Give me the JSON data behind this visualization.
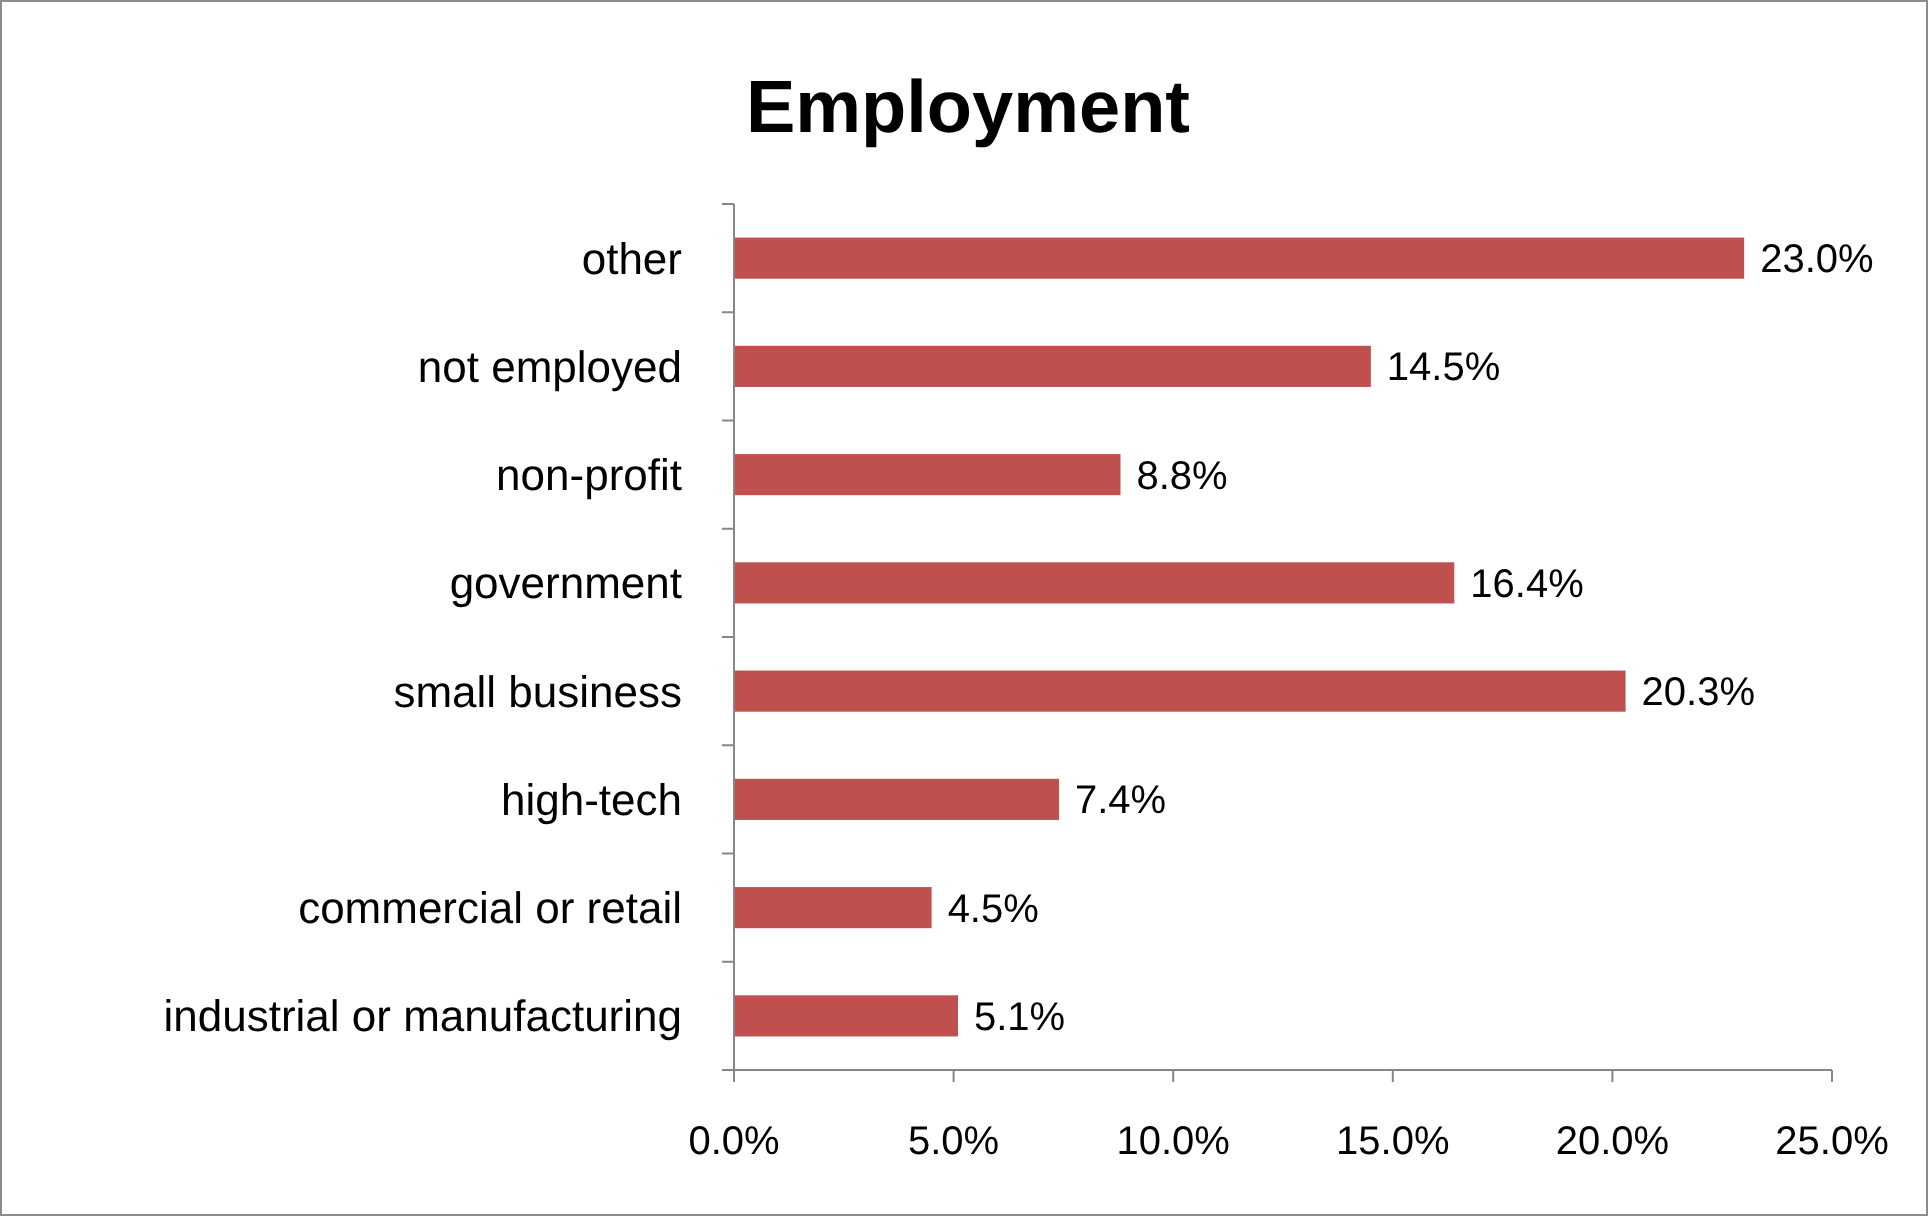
{
  "chart_data": {
    "type": "bar",
    "orientation": "horizontal",
    "title": "Employment",
    "categories": [
      "other",
      "not employed",
      "non-profit",
      "government",
      "small business",
      "high-tech",
      "commercial or retail",
      "industrial or manufacturing"
    ],
    "values": [
      23.0,
      14.5,
      8.8,
      16.4,
      20.3,
      7.4,
      4.5,
      5.1
    ],
    "value_labels": [
      "23.0%",
      "14.5%",
      "8.8%",
      "16.4%",
      "20.3%",
      "7.4%",
      "4.5%",
      "5.1%"
    ],
    "color": "#c0504d",
    "xlim": [
      0,
      25
    ],
    "xticks": [
      {
        "value": 0,
        "label": "0.0%"
      },
      {
        "value": 5,
        "label": "5.0%"
      },
      {
        "value": 10,
        "label": "10.0%"
      },
      {
        "value": 15,
        "label": "15.0%"
      },
      {
        "value": 20,
        "label": "20.0%"
      },
      {
        "value": 25,
        "label": "25.0%"
      }
    ],
    "grid": false
  }
}
